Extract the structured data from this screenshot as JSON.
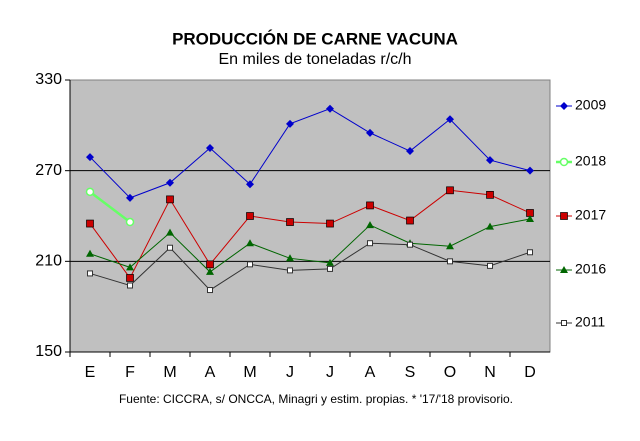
{
  "chart_data": {
    "type": "line",
    "title": "PRODUCCIÓN DE CARNE VACUNA",
    "subtitle": "En miles de toneladas r/c/h",
    "footnote": "Fuente: CICCRA, s/ ONCCA, Minagri y estim. propias. * '17/'18 provisorio.",
    "categories": [
      "E",
      "F",
      "M",
      "A",
      "M",
      "J",
      "J",
      "A",
      "S",
      "O",
      "N",
      "D"
    ],
    "series": [
      {
        "name": "2009",
        "color": "#0000cc",
        "marker": "diamond",
        "values": [
          279,
          252,
          262,
          285,
          261,
          301,
          311,
          295,
          283,
          304,
          277,
          270
        ]
      },
      {
        "name": "2018",
        "color": "#66ff66",
        "marker": "circle",
        "values": [
          256,
          236,
          null,
          null,
          null,
          null,
          null,
          null,
          null,
          null,
          null,
          null
        ]
      },
      {
        "name": "2017",
        "color": "#cc0000",
        "marker": "square",
        "values": [
          235,
          199,
          251,
          208,
          240,
          236,
          235,
          247,
          237,
          257,
          254,
          242
        ]
      },
      {
        "name": "2016",
        "color": "#006600",
        "marker": "triangle",
        "values": [
          215,
          206,
          229,
          203,
          222,
          212,
          209,
          234,
          222,
          220,
          233,
          238
        ]
      },
      {
        "name": "2011",
        "color": "#333333",
        "marker": "smallsquare",
        "values": [
          202,
          194,
          219,
          191,
          208,
          204,
          205,
          222,
          221,
          210,
          207,
          216
        ]
      }
    ],
    "ylim": [
      150,
      330
    ],
    "yticks": [
      150,
      210,
      270,
      330
    ],
    "grid": true,
    "legend": "right"
  }
}
